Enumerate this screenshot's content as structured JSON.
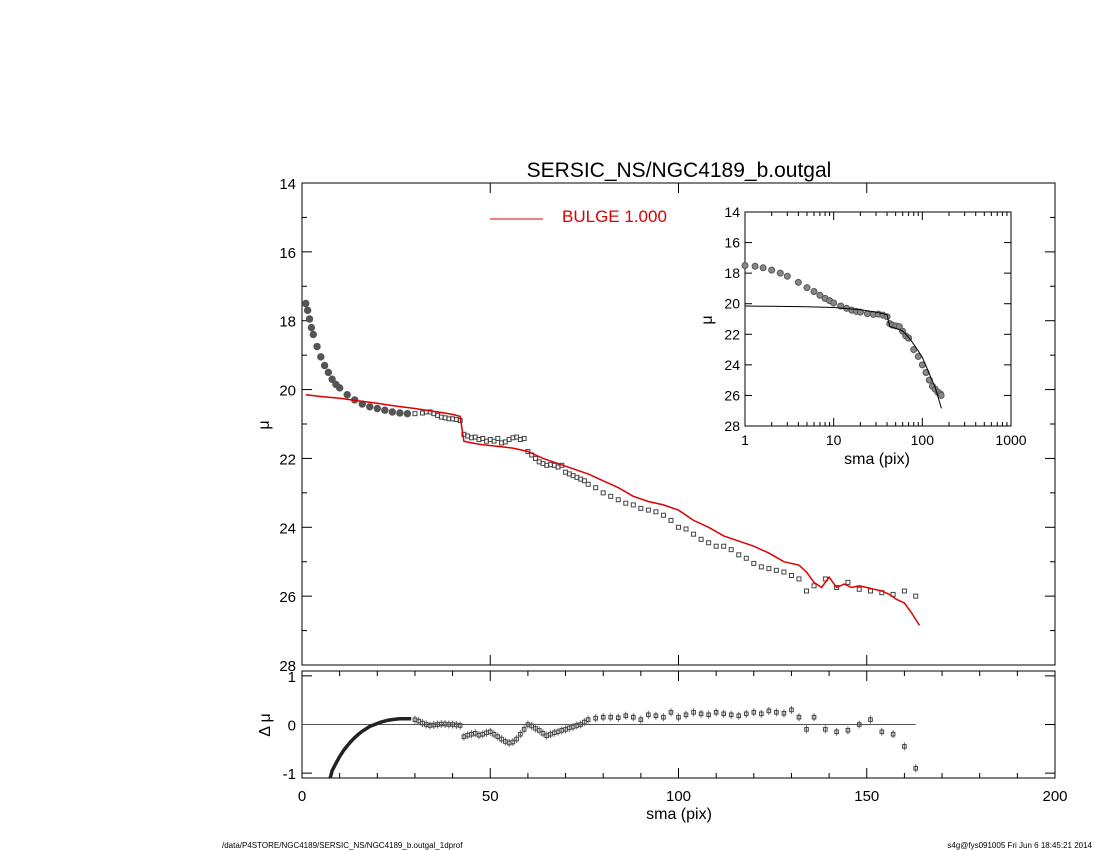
{
  "footer": {
    "left": "/data/P4STORE/NGC4189/SERSIC_NS/NGC4189_b.outgal_1dprof",
    "right": "s4g@fys091005  Fri Jun  6 18:45:21 2014"
  },
  "colors": {
    "model": "#dd0000",
    "data": "#555555",
    "axes": "#000000"
  },
  "chart_data": [
    {
      "type": "scatter",
      "title": "SERSIC_NS/NGC4189_b.outgal",
      "xlabel": "",
      "ylabel": "μ",
      "xlim": [
        0,
        200
      ],
      "ylim": [
        28,
        14
      ],
      "y_inverted": true,
      "xticks": [
        "0",
        "50",
        "100",
        "150",
        "200"
      ],
      "yticks": [
        "14",
        "16",
        "18",
        "20",
        "22",
        "24",
        "26",
        "28"
      ],
      "legend": {
        "placement": "top-center",
        "label": "BULGE  1.000",
        "color": "#dd0000"
      },
      "series": [
        {
          "name": "",
          "kind": "points",
          "x": [
            1.0,
            1.5,
            2.0,
            2.5,
            3.0,
            4.0,
            5.0,
            6.0,
            7.0,
            8.0,
            9.0,
            10.0,
            12.0,
            14.0,
            16.0,
            18.0,
            20.0,
            22.0,
            24.0,
            26.0,
            28.0,
            30.0,
            32.0,
            33.0,
            34.0,
            35.0,
            36.0,
            37.0,
            38.0,
            39.0,
            40.0,
            41.0,
            42.0,
            43.0,
            44.0,
            45.0,
            46.0,
            47.0,
            48.0,
            49.0,
            50.0,
            51.0,
            52.0,
            53.0,
            54.0,
            55.0,
            56.0,
            57.0,
            58.0,
            59.0,
            60.0,
            61.0,
            62.0,
            63.0,
            64.0,
            65.0,
            66.0,
            67.0,
            68.0,
            69.0,
            70.0,
            71.0,
            72.0,
            73.0,
            74.0,
            75.0,
            76.0,
            78.0,
            80.0,
            82.0,
            84.0,
            86.0,
            88.0,
            90.0,
            92.0,
            94.0,
            96.0,
            98.0,
            100.0,
            102.0,
            104.0,
            106.0,
            108.0,
            110.0,
            112.0,
            114.0,
            116.0,
            118.0,
            120.0,
            122.0,
            124.0,
            126.0,
            128.0,
            130.0,
            132.0,
            134.0,
            136.0,
            139.0,
            142.0,
            145.0,
            148.0,
            151.0,
            154.0,
            157.0,
            160.0,
            163.0
          ],
          "y": [
            17.5,
            17.7,
            17.95,
            18.2,
            18.4,
            18.75,
            19.05,
            19.3,
            19.5,
            19.7,
            19.85,
            19.95,
            20.15,
            20.3,
            20.42,
            20.5,
            20.55,
            20.6,
            20.65,
            20.68,
            20.7,
            20.7,
            20.68,
            20.65,
            20.65,
            20.7,
            20.75,
            20.8,
            20.82,
            20.85,
            20.85,
            20.87,
            20.9,
            21.3,
            21.35,
            21.4,
            21.38,
            21.45,
            21.42,
            21.5,
            21.45,
            21.5,
            21.42,
            21.55,
            21.52,
            21.45,
            21.4,
            21.38,
            21.45,
            21.42,
            21.8,
            21.9,
            22.0,
            22.1,
            22.15,
            22.2,
            22.18,
            22.2,
            22.25,
            22.2,
            22.4,
            22.45,
            22.5,
            22.55,
            22.6,
            22.65,
            22.75,
            22.85,
            23.0,
            23.1,
            23.2,
            23.3,
            23.35,
            23.45,
            23.5,
            23.55,
            23.65,
            23.8,
            24.0,
            24.05,
            24.2,
            24.35,
            24.45,
            24.55,
            24.55,
            24.65,
            24.8,
            24.9,
            25.05,
            25.15,
            25.2,
            25.25,
            25.3,
            25.4,
            25.5,
            25.85,
            25.7,
            25.5,
            25.75,
            25.6,
            25.8,
            25.85,
            25.9,
            25.95,
            25.85,
            26.0
          ]
        },
        {
          "name": "BULGE  1.000",
          "kind": "line",
          "x": [
            1.0,
            5.0,
            10.0,
            15.0,
            20.0,
            25.0,
            30.0,
            33.0,
            36.0,
            40.0,
            42.0,
            43.0,
            45.0,
            48.0,
            52.0,
            56.0,
            60.0,
            64.0,
            68.0,
            72.0,
            76.0,
            80.0,
            84.0,
            88.0,
            92.0,
            96.0,
            100.0,
            104.0,
            108.0,
            112.0,
            116.0,
            120.0,
            124.0,
            128.0,
            132.0,
            134.0,
            136.0,
            138.0,
            140.0,
            142.0,
            144.0,
            146.0,
            148.0,
            150.0,
            152.0,
            154.0,
            156.0,
            158.0,
            160.0,
            162.0,
            164.0
          ],
          "y": [
            20.15,
            20.2,
            20.25,
            20.33,
            20.4,
            20.48,
            20.55,
            20.6,
            20.65,
            20.72,
            20.78,
            21.5,
            21.55,
            21.6,
            21.65,
            21.7,
            21.8,
            22.0,
            22.15,
            22.3,
            22.45,
            22.65,
            22.85,
            23.1,
            23.25,
            23.35,
            23.5,
            23.8,
            24.0,
            24.25,
            24.4,
            24.55,
            24.75,
            25.0,
            25.1,
            25.3,
            25.6,
            25.75,
            25.45,
            25.75,
            25.65,
            25.75,
            25.7,
            25.75,
            25.8,
            25.85,
            25.95,
            26.1,
            26.2,
            26.5,
            26.85
          ]
        }
      ]
    },
    {
      "type": "scatter",
      "xlabel": "",
      "ylabel": "Δ μ",
      "xlim": [
        0,
        200
      ],
      "ylim": [
        -1.1,
        1.1
      ],
      "xticks": [
        "0",
        "50",
        "100",
        "150",
        "200"
      ],
      "yticks": [
        "-1",
        "0",
        "1"
      ],
      "reference_line": {
        "y": 0,
        "x_range": [
          0,
          163
        ]
      },
      "series": [
        {
          "name": "",
          "kind": "dense-curve",
          "x": [
            7.5,
            8.0,
            9.0,
            10.0,
            11.0,
            12.0,
            13.0,
            14.0,
            15.0,
            16.0,
            17.0,
            18.0,
            19.0,
            20.0,
            21.0,
            22.0,
            23.0,
            24.0,
            25.0,
            26.0,
            27.0,
            28.0,
            29.0
          ],
          "y": [
            -1.1,
            -0.95,
            -0.8,
            -0.66,
            -0.54,
            -0.44,
            -0.35,
            -0.27,
            -0.2,
            -0.14,
            -0.09,
            -0.04,
            -0.01,
            0.02,
            0.05,
            0.07,
            0.09,
            0.1,
            0.11,
            0.12,
            0.12,
            0.12,
            0.12
          ]
        },
        {
          "name": "",
          "kind": "points",
          "x": [
            30.0,
            31.0,
            32.0,
            33.0,
            34.0,
            35.0,
            36.0,
            37.0,
            38.0,
            39.0,
            40.0,
            41.0,
            42.0,
            43.0,
            44.0,
            45.0,
            46.0,
            47.0,
            48.0,
            49.0,
            50.0,
            51.0,
            52.0,
            53.0,
            54.0,
            55.0,
            56.0,
            57.0,
            58.0,
            59.0,
            60.0,
            61.0,
            62.0,
            63.0,
            64.0,
            65.0,
            66.0,
            67.0,
            68.0,
            69.0,
            70.0,
            71.0,
            72.0,
            73.0,
            74.0,
            75.0,
            76.0,
            78.0,
            80.0,
            82.0,
            84.0,
            86.0,
            88.0,
            90.0,
            92.0,
            94.0,
            96.0,
            98.0,
            100.0,
            102.0,
            104.0,
            106.0,
            108.0,
            110.0,
            112.0,
            114.0,
            116.0,
            118.0,
            120.0,
            122.0,
            124.0,
            126.0,
            128.0,
            130.0,
            132.0,
            134.0,
            136.0,
            139.0,
            142.0,
            145.0,
            148.0,
            151.0,
            154.0,
            157.0,
            160.0,
            163.0
          ],
          "y": [
            0.1,
            0.07,
            0.03,
            0.0,
            -0.02,
            -0.01,
            0.0,
            0.01,
            0.01,
            0.0,
            0.0,
            -0.01,
            -0.02,
            -0.25,
            -0.22,
            -0.2,
            -0.18,
            -0.22,
            -0.2,
            -0.17,
            -0.15,
            -0.2,
            -0.25,
            -0.3,
            -0.35,
            -0.38,
            -0.36,
            -0.3,
            -0.2,
            -0.1,
            0.0,
            -0.03,
            -0.08,
            -0.12,
            -0.18,
            -0.23,
            -0.2,
            -0.17,
            -0.15,
            -0.12,
            -0.1,
            -0.07,
            -0.05,
            -0.02,
            0.0,
            0.05,
            0.1,
            0.13,
            0.15,
            0.15,
            0.14,
            0.18,
            0.15,
            0.1,
            0.2,
            0.18,
            0.15,
            0.25,
            0.15,
            0.2,
            0.25,
            0.22,
            0.2,
            0.25,
            0.22,
            0.2,
            0.18,
            0.22,
            0.25,
            0.22,
            0.28,
            0.25,
            0.23,
            0.3,
            0.15,
            -0.1,
            0.15,
            -0.1,
            -0.15,
            -0.12,
            0.0,
            0.1,
            -0.15,
            -0.2,
            -0.45,
            -0.9
          ]
        }
      ]
    },
    {
      "type": "scatter",
      "xlabel": "sma (pix)",
      "ylabel": "μ",
      "x_scale": "log",
      "xlim": [
        1,
        1000
      ],
      "ylim": [
        28,
        14
      ],
      "y_inverted": true,
      "xticks": [
        "1",
        "10",
        "100",
        "1000"
      ],
      "yticks": [
        "14",
        "16",
        "18",
        "20",
        "22",
        "24",
        "26",
        "28"
      ],
      "series": [
        {
          "name": "",
          "kind": "points",
          "x": [
            1.0,
            1.3,
            1.6,
            2.0,
            2.5,
            3.0,
            4.0,
            5.0,
            6.0,
            7.0,
            8.0,
            9.0,
            10.0,
            12.0,
            14.0,
            16.0,
            18.0,
            20.0,
            24.0,
            28.0,
            32.0,
            36.0,
            40.0,
            43.0,
            46.0,
            50.0,
            55.0,
            60.0,
            65.0,
            70.0,
            80.0,
            90.0,
            100.0,
            110.0,
            120.0,
            130.0,
            140.0,
            150.0,
            160.0,
            163.0
          ],
          "y": [
            17.5,
            17.55,
            17.65,
            17.8,
            18.0,
            18.2,
            18.6,
            18.95,
            19.2,
            19.45,
            19.65,
            19.8,
            19.95,
            20.15,
            20.3,
            20.42,
            20.5,
            20.55,
            20.65,
            20.7,
            20.68,
            20.75,
            20.85,
            21.3,
            21.4,
            21.45,
            21.5,
            21.8,
            22.1,
            22.25,
            23.0,
            23.45,
            24.0,
            24.5,
            25.0,
            25.4,
            25.6,
            25.8,
            25.9,
            26.0
          ]
        },
        {
          "name": "",
          "kind": "line",
          "x": [
            1.0,
            2.0,
            5.0,
            10.0,
            20.0,
            30.0,
            40.0,
            43.0,
            50.0,
            60.0,
            70.0,
            80.0,
            100.0,
            120.0,
            140.0,
            164.0
          ],
          "y": [
            20.15,
            20.17,
            20.2,
            20.25,
            20.4,
            20.55,
            20.72,
            21.5,
            21.6,
            21.8,
            22.2,
            22.65,
            23.5,
            24.6,
            25.5,
            26.85
          ]
        }
      ]
    }
  ]
}
